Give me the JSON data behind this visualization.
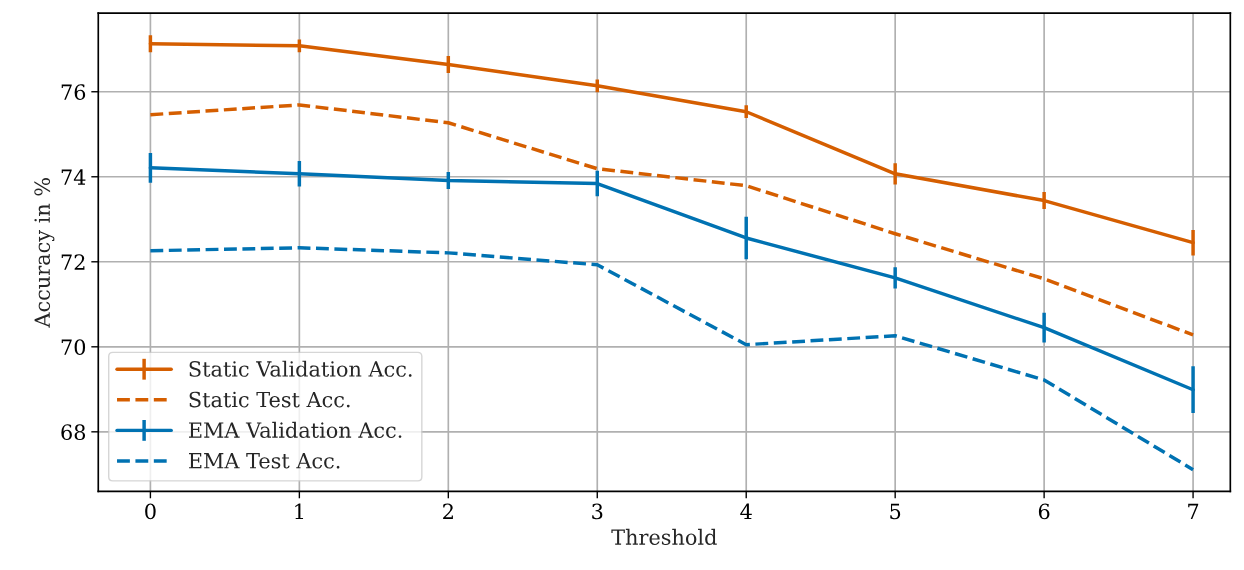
{
  "chart_data": {
    "type": "line",
    "xlabel": "Threshold",
    "ylabel": "Accuracy in %",
    "x": [
      0,
      1,
      2,
      3,
      4,
      5,
      6,
      7
    ],
    "series": [
      {
        "name": "Static Validation Acc.",
        "color": "#d55e00",
        "line_style": "solid",
        "values": [
          77.13,
          77.08,
          76.64,
          76.14,
          75.53,
          74.07,
          73.44,
          72.45
        ],
        "errors": [
          0.2,
          0.15,
          0.2,
          0.15,
          0.15,
          0.25,
          0.2,
          0.3
        ]
      },
      {
        "name": "Static Test Acc.",
        "color": "#d55e00",
        "line_style": "dashed",
        "values": [
          75.46,
          75.69,
          75.27,
          74.19,
          73.79,
          72.66,
          71.6,
          70.28
        ]
      },
      {
        "name": "EMA Validation Acc.",
        "color": "#0072b2",
        "line_style": "solid",
        "values": [
          74.21,
          74.07,
          73.91,
          73.84,
          72.56,
          71.62,
          70.45,
          68.99
        ],
        "errors": [
          0.35,
          0.3,
          0.2,
          0.3,
          0.5,
          0.25,
          0.35,
          0.55
        ]
      },
      {
        "name": "EMA Test Acc.",
        "color": "#0072b2",
        "line_style": "dashed",
        "values": [
          72.26,
          72.33,
          72.21,
          71.93,
          70.05,
          70.26,
          69.22,
          67.11
        ]
      }
    ],
    "xlim": [
      -0.35,
      7.25
    ],
    "ylim": [
      66.6,
      77.85
    ],
    "xticks": [
      0,
      1,
      2,
      3,
      4,
      5,
      6,
      7
    ],
    "yticks": [
      68,
      70,
      72,
      74,
      76
    ],
    "grid": true,
    "legend": "bottom left",
    "marker": "none"
  }
}
